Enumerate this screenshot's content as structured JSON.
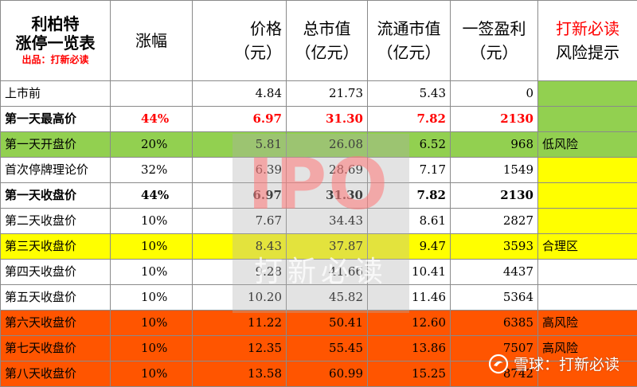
{
  "header": {
    "title_line1": "利柏特",
    "title_line2": "涨停一览表",
    "source": "出品：打新必读",
    "col_change": "涨幅",
    "col_price_l1": "价格",
    "col_price_l2": "（元）",
    "col_mcap_l1": "总市值",
    "col_mcap_l2": "（亿元）",
    "col_float_l1": "流通市值",
    "col_float_l2": "（亿元）",
    "col_profit_l1": "一签盈利",
    "col_profit_l2": "（元）",
    "col_risk_l1": "打新必读",
    "col_risk_l2": "风险提示"
  },
  "rows": [
    {
      "label": "上市前",
      "change": "",
      "price": "4.84",
      "mcap": "21.73",
      "float": "5.43",
      "profit": "0",
      "risk": ""
    },
    {
      "label": "第一天最高价",
      "change": "44%",
      "price": "6.97",
      "mcap": "31.30",
      "float": "7.82",
      "profit": "2130",
      "risk": ""
    },
    {
      "label": "第一天开盘价",
      "change": "20%",
      "price": "5.81",
      "mcap": "26.08",
      "float": "6.52",
      "profit": "968",
      "risk": "低风险"
    },
    {
      "label": "首次停牌理论价",
      "change": "32%",
      "price": "6.39",
      "mcap": "28.69",
      "float": "7.17",
      "profit": "1549",
      "risk": ""
    },
    {
      "label": "第一天收盘价",
      "change": "44%",
      "price": "6.97",
      "mcap": "31.30",
      "float": "7.82",
      "profit": "2130",
      "risk": ""
    },
    {
      "label": "第二天收盘价",
      "change": "10%",
      "price": "7.67",
      "mcap": "34.43",
      "float": "8.61",
      "profit": "2827",
      "risk": ""
    },
    {
      "label": "第三天收盘价",
      "change": "10%",
      "price": "8.43",
      "mcap": "37.87",
      "float": "9.47",
      "profit": "3593",
      "risk": "合理区"
    },
    {
      "label": "第四天收盘价",
      "change": "10%",
      "price": "9.28",
      "mcap": "41.66",
      "float": "10.41",
      "profit": "4437",
      "risk": ""
    },
    {
      "label": "第五天收盘价",
      "change": "10%",
      "price": "10.20",
      "mcap": "45.82",
      "float": "11.46",
      "profit": "5364",
      "risk": ""
    },
    {
      "label": "第六天收盘价",
      "change": "10%",
      "price": "11.22",
      "mcap": "50.41",
      "float": "12.60",
      "profit": "6385",
      "risk": "高风险"
    },
    {
      "label": "第七天收盘价",
      "change": "10%",
      "price": "12.35",
      "mcap": "55.45",
      "float": "13.86",
      "profit": "7507",
      "risk": "高风险"
    },
    {
      "label": "第八天收盘价",
      "change": "10%",
      "price": "13.58",
      "mcap": "60.99",
      "float": "15.25",
      "profit": "8742",
      "risk": ""
    }
  ],
  "watermark": {
    "ipo": "IPO",
    "cn": "打新必读",
    "xueqiu": "雪球：打新必读"
  },
  "colors": {
    "green": "#92d050",
    "yellow": "#ffff00",
    "orange": "#ff5500",
    "red_text": "#ff0000"
  }
}
